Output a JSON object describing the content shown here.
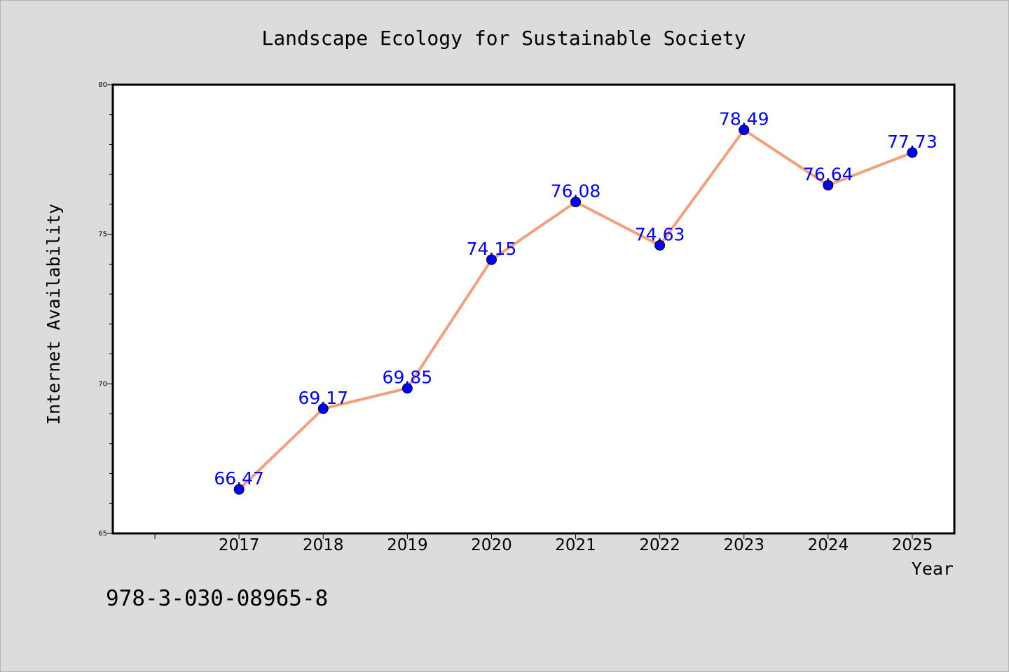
{
  "caption": "978-3-030-08965-8",
  "colors": {
    "background": "#dcdcdc",
    "plot_background": "#ffffff",
    "line": "#f4a07c",
    "marker": "#0000ff",
    "label": "#0000ff",
    "text": "#000000"
  },
  "chart_data": {
    "type": "line",
    "title": "Landscape Ecology for Sustainable Society",
    "xlabel": "Year",
    "ylabel": "Internet Availability",
    "x": [
      "2017",
      "2018",
      "2019",
      "2020",
      "2021",
      "2022",
      "2023",
      "2024",
      "2025"
    ],
    "series": [
      {
        "values": [
          66.47,
          69.17,
          69.85,
          74.15,
          76.08,
          74.63,
          78.49,
          76.64,
          77.73
        ],
        "labels": [
          "66.47",
          "69.17",
          "69.85",
          "74.15",
          "76.08",
          "74.63",
          "78.49",
          "76.64",
          "77.73"
        ]
      }
    ],
    "ylim": [
      65,
      80
    ],
    "yticks": [
      "65",
      "70",
      "75",
      "80"
    ],
    "x_index_range": [
      -1.5,
      8.5
    ],
    "grid": false,
    "legend": "none"
  }
}
